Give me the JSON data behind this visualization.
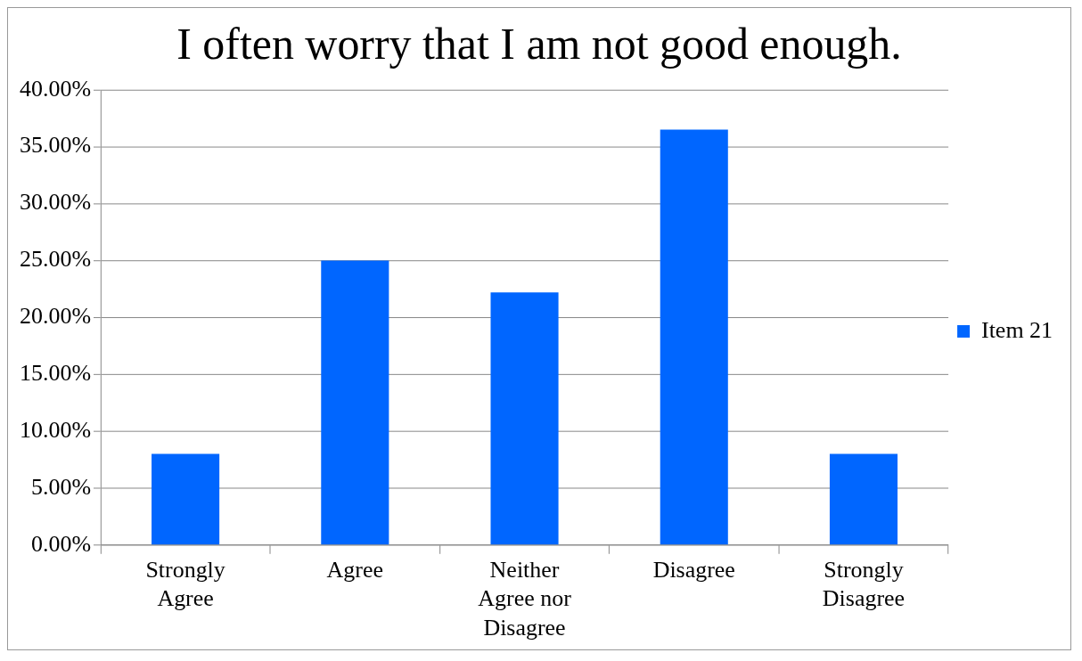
{
  "chart_data": {
    "type": "bar",
    "title": "I often worry that I am not good enough.",
    "categories": [
      "Strongly Agree",
      "Agree",
      "Neither Agree nor Disagree",
      "Disagree",
      "Strongly Disagree"
    ],
    "series": [
      {
        "name": "Item 21",
        "color": "#0066ff",
        "values": [
          8.0,
          25.0,
          22.2,
          36.5,
          8.0
        ]
      }
    ],
    "ylim": [
      0,
      40
    ],
    "yticks": [
      {
        "value": 0,
        "label": "0.00%"
      },
      {
        "value": 5,
        "label": "5.00%"
      },
      {
        "value": 10,
        "label": "10.00%"
      },
      {
        "value": 15,
        "label": "15.00%"
      },
      {
        "value": 20,
        "label": "20.00%"
      },
      {
        "value": 25,
        "label": "25.00%"
      },
      {
        "value": 30,
        "label": "30.00%"
      },
      {
        "value": 35,
        "label": "35.00%"
      },
      {
        "value": 40,
        "label": "40.00%"
      }
    ],
    "grid": "y",
    "legend": "right"
  }
}
